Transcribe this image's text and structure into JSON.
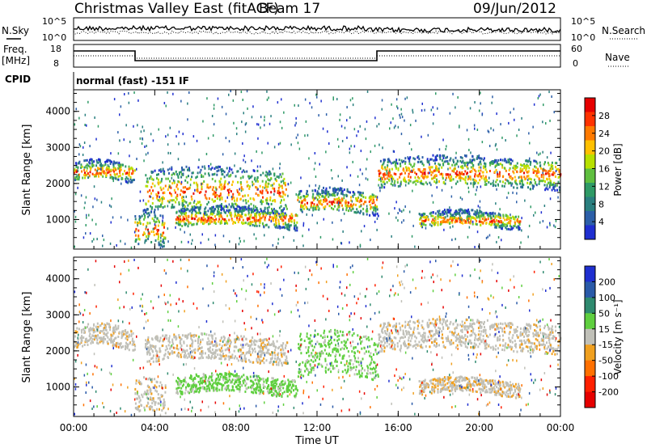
{
  "header": {
    "title": "Christmas Valley East (fitACF)",
    "beam": "Beam 17",
    "date": "09/Jun/2012"
  },
  "noise_panel": {
    "left_label": "N.Sky",
    "right_label": "N.Search",
    "left_ticks": [
      "10^5",
      "10^0"
    ],
    "right_ticks": [
      "10^5",
      "10^0"
    ]
  },
  "freq_panel": {
    "left_label_line1": "Freq.",
    "left_label_line2": "[MHz]",
    "right_label": "Nave",
    "left_ticks": [
      "18",
      "8"
    ],
    "right_ticks": [
      "60",
      "0"
    ]
  },
  "cpid": {
    "label": "CPID",
    "value": "normal (fast) -151 IF"
  },
  "x_axis": {
    "label": "Time UT",
    "ticks": [
      "00:00",
      "04:00",
      "08:00",
      "12:00",
      "16:00",
      "20:00",
      "00:00"
    ]
  },
  "power_colorbar": {
    "label": "Power [dB]",
    "ticks": [
      "28",
      "24",
      "20",
      "16",
      "12",
      "8",
      "4"
    ],
    "colors": [
      "#e60000",
      "#ff3300",
      "#ff7a00",
      "#ffc000",
      "#b7e000",
      "#5fbf3f",
      "#2f9a66",
      "#2a7f7f",
      "#2c5fa8",
      "#1f2fd0"
    ]
  },
  "velocity_colorbar": {
    "label": "Velocity [m s⁻¹]",
    "ticks": [
      "200",
      "100",
      "50",
      "15",
      "-15",
      "-50",
      "-100",
      "-200"
    ],
    "colors": [
      "#1f2fd0",
      "#2a5aa8",
      "#2f8a6f",
      "#5fcf3f",
      "#c0c0b8",
      "#f0a020",
      "#ff7000",
      "#ff2000",
      "#e60000"
    ]
  },
  "chart_data": [
    {
      "type": "heatmap",
      "name": "power",
      "ylabel": "Slant Range [km]",
      "xlabel": "Time UT",
      "xlim": [
        0,
        24
      ],
      "ylim": [
        180,
        4600
      ],
      "yticks": [
        1000,
        2000,
        3000,
        4000
      ],
      "echo_bands": [
        {
          "t": [
            0,
            3
          ],
          "range_km": [
            2100,
            2600
          ],
          "peak_db": 28
        },
        {
          "t": [
            3,
            4.5
          ],
          "range_km": [
            300,
            1200
          ],
          "peak_db": 28
        },
        {
          "t": [
            3.5,
            10.5
          ],
          "range_km": [
            1200,
            2400
          ],
          "peak_db": 24
        },
        {
          "t": [
            5,
            11
          ],
          "range_km": [
            800,
            1300
          ],
          "peak_db": 24
        },
        {
          "t": [
            11,
            15
          ],
          "range_km": [
            1200,
            1800
          ],
          "peak_db": 28
        },
        {
          "t": [
            15,
            24
          ],
          "range_km": [
            1900,
            2700
          ],
          "peak_db": 28
        },
        {
          "t": [
            17,
            22
          ],
          "range_km": [
            800,
            1200
          ],
          "peak_db": 20
        }
      ]
    },
    {
      "type": "heatmap",
      "name": "velocity",
      "ylabel": "Slant Range [km]",
      "xlabel": "Time UT",
      "xlim": [
        0,
        24
      ],
      "ylim": [
        180,
        4600
      ],
      "yticks": [
        1000,
        2000,
        3000,
        4000
      ],
      "echo_bands": [
        {
          "t": [
            0,
            3
          ],
          "range_km": [
            2100,
            2700
          ],
          "velocity": 0
        },
        {
          "t": [
            3,
            4.5
          ],
          "range_km": [
            300,
            1200
          ],
          "velocity": 0
        },
        {
          "t": [
            3.5,
            10.5
          ],
          "range_km": [
            1700,
            2400
          ],
          "velocity": 0
        },
        {
          "t": [
            5,
            11
          ],
          "range_km": [
            800,
            1300
          ],
          "velocity": 50
        },
        {
          "t": [
            11,
            15
          ],
          "range_km": [
            1300,
            2500
          ],
          "velocity": 50
        },
        {
          "t": [
            15,
            24
          ],
          "range_km": [
            2000,
            2800
          ],
          "velocity": 0
        },
        {
          "t": [
            17,
            22
          ],
          "range_km": [
            800,
            1200
          ],
          "velocity": -15
        }
      ]
    }
  ]
}
